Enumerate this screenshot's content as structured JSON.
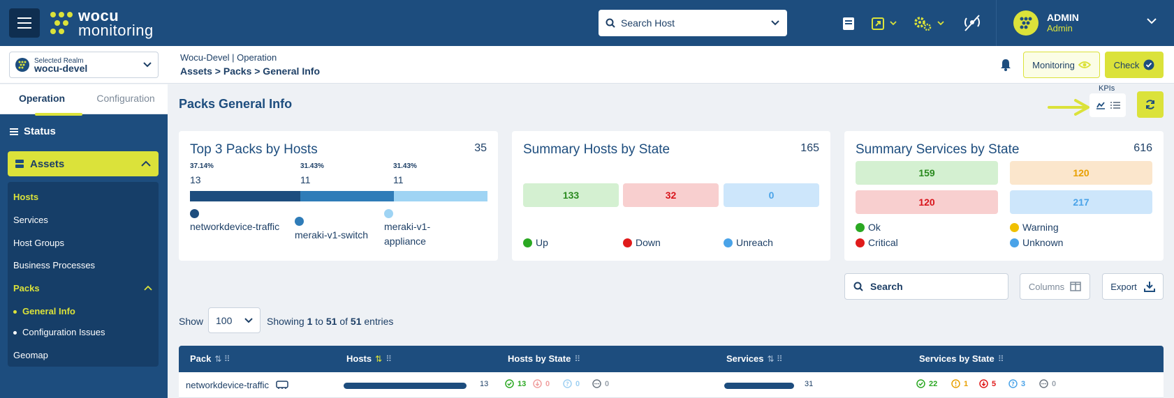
{
  "brand": {
    "line1": "wocu",
    "line2": "monitoring"
  },
  "header": {
    "search_placeholder": "Search Host",
    "user_name": "ADMIN",
    "user_role": "Admin"
  },
  "realm": {
    "label": "Selected Realm",
    "value": "wocu-devel"
  },
  "breadcrumb": {
    "context": "Wocu-Devel | Operation",
    "path": "Assets > Packs > General Info"
  },
  "actions": {
    "monitoring": "Monitoring",
    "check": "Check"
  },
  "sidebar": {
    "tabs": [
      "Operation",
      "Configuration"
    ],
    "status": "Status",
    "assets": "Assets",
    "items": [
      "Hosts",
      "Services",
      "Host Groups",
      "Business Processes",
      "Packs",
      "General Info",
      "Configuration Issues",
      "Geomap"
    ]
  },
  "page": {
    "title": "Packs General Info",
    "kpis_label": "KPIs"
  },
  "top_packs": {
    "title": "Top 3 Packs by Hosts",
    "total": "35",
    "items": [
      {
        "pct": "37.14%",
        "count": "13",
        "name": "networkdevice-traffic",
        "share": 37.14,
        "color": "#1d4d7e"
      },
      {
        "pct": "31.43%",
        "count": "11",
        "name": "meraki-v1-switch",
        "share": 31.43,
        "color": "#2f7cb8"
      },
      {
        "pct": "31.43%",
        "count": "11",
        "name": "meraki-v1-appliance",
        "share": 31.43,
        "color": "#9fd4f4"
      }
    ]
  },
  "hosts_summary": {
    "title": "Summary Hosts by State",
    "total": "165",
    "up": "133",
    "down": "32",
    "unreach": "0",
    "legend": [
      "Up",
      "Down",
      "Unreach"
    ]
  },
  "services_summary": {
    "title": "Summary Services by State",
    "total": "616",
    "ok": "159",
    "warning": "120",
    "critical": "120",
    "unknown": "217",
    "legend": [
      "Ok",
      "Warning",
      "Critical",
      "Unknown"
    ]
  },
  "table_controls": {
    "search": "Search",
    "columns": "Columns",
    "export": "Export",
    "show_label": "Show",
    "page_size": "100",
    "showing_prefix": "Showing ",
    "from": "1",
    "to_word": " to ",
    "to": "51",
    "of_word": " of ",
    "total": "51",
    "suffix": " entries"
  },
  "table": {
    "headers": [
      "Pack",
      "Hosts",
      "Hosts by State",
      "Services",
      "Services by State"
    ],
    "rows": [
      {
        "pack": "networkdevice-traffic",
        "hosts": "13",
        "hosts_fill": 1.0,
        "h_up": "13",
        "h_down": "0",
        "h_unreach": "0",
        "h_pending": "0",
        "services": "31",
        "services_fill": 1.0,
        "s_ok": "22",
        "s_warning": "1",
        "s_critical": "5",
        "s_unknown": "3",
        "s_pending": "0"
      }
    ]
  },
  "colors": {
    "brand": "#1d4d7e",
    "accent": "#dbe23a",
    "up": "#2aa822",
    "down": "#e01b1b",
    "unreach": "#4aa3e8",
    "warning": "#f0c000"
  }
}
